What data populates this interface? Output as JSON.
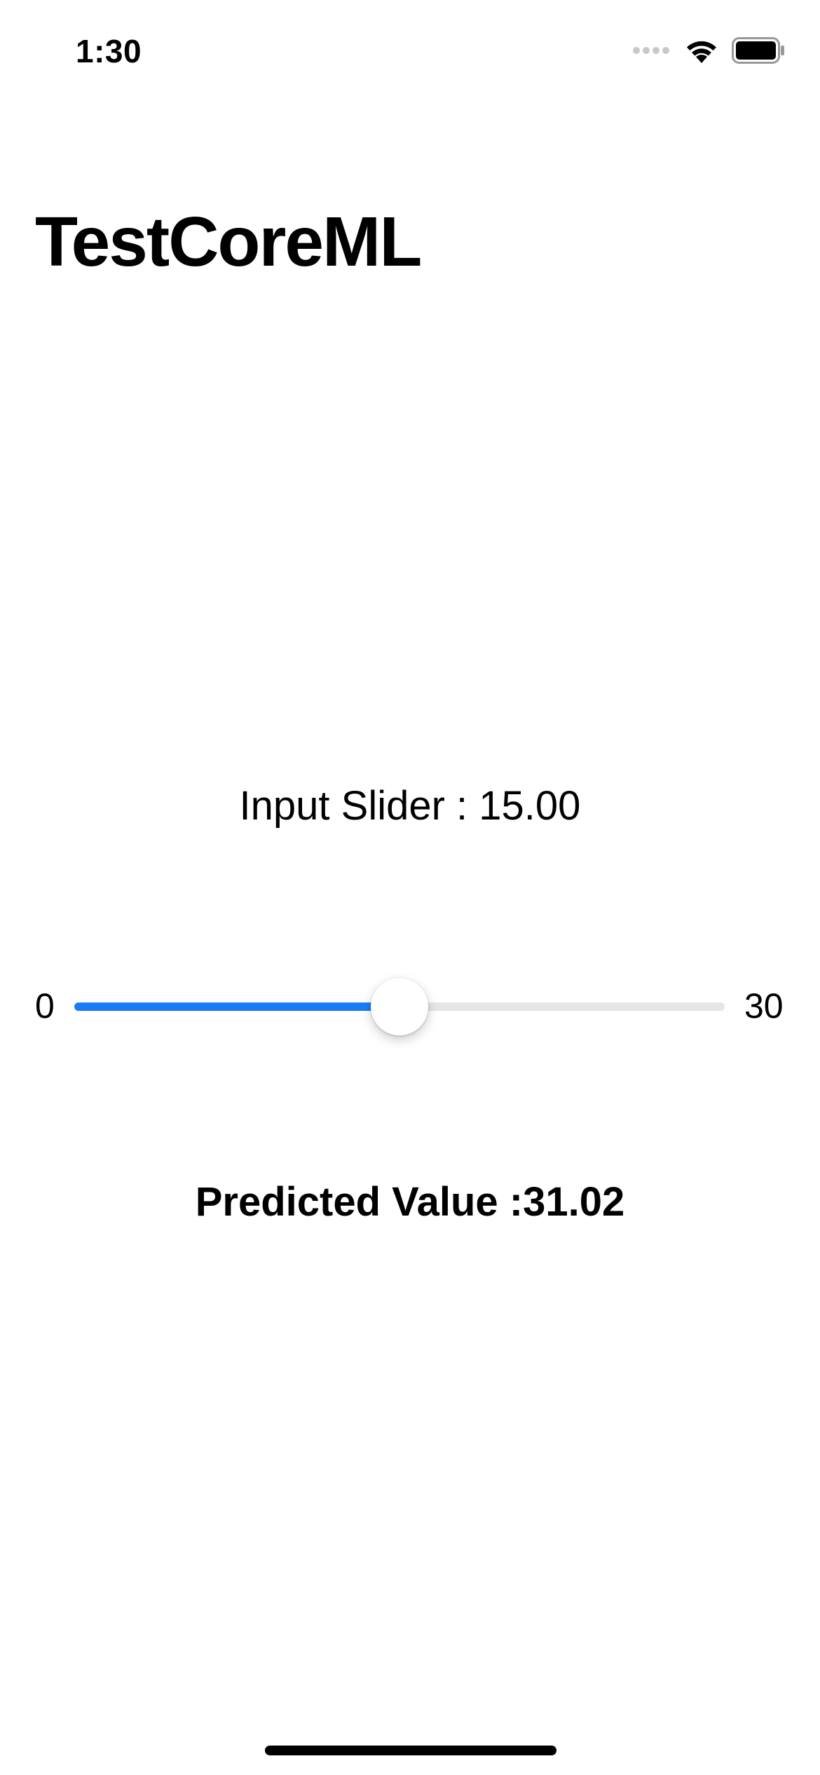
{
  "status_bar": {
    "time": "1:30",
    "icons": [
      "cellular-icon",
      "wifi-icon",
      "battery-icon"
    ]
  },
  "nav": {
    "title": "TestCoreML"
  },
  "slider": {
    "label": "Input Slider : 15.00",
    "min_label": "0",
    "max_label": "30",
    "min": 0,
    "max": 30,
    "value": 15,
    "accent_color": "#1a7cf5",
    "track_color": "#e6e6e8"
  },
  "prediction": {
    "text": "Predicted Value :31.02"
  }
}
